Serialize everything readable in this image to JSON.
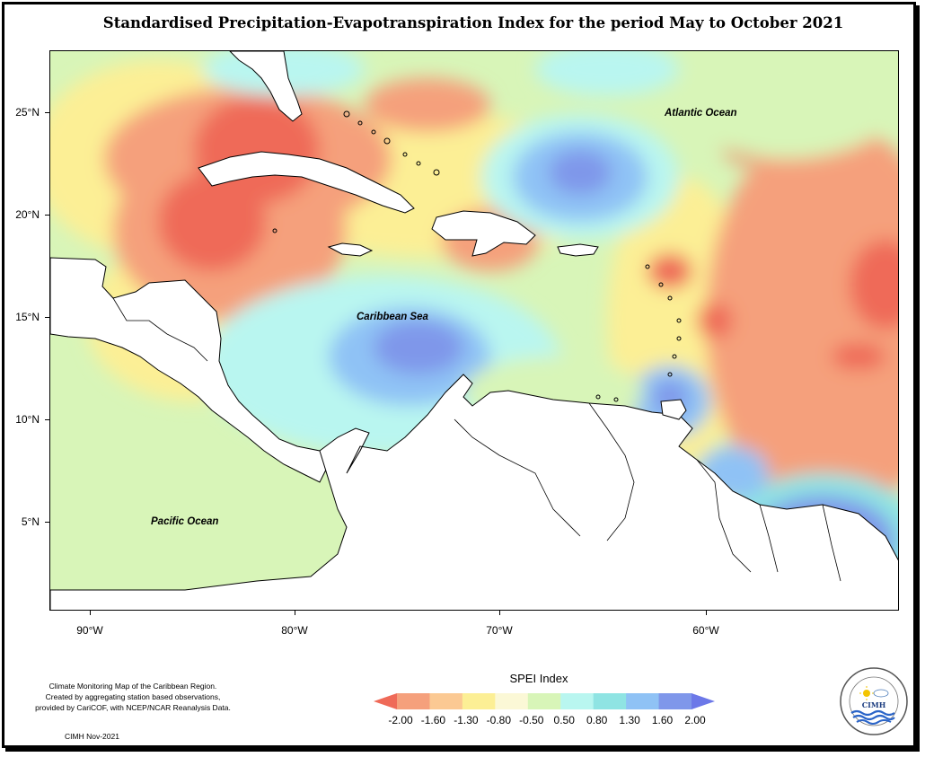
{
  "title": "Standardised Precipitation-Evapotranspiration Index for the period May to October 2021",
  "map": {
    "y_ticks": [
      "25°N",
      "20°N",
      "15°N",
      "10°N",
      "5°N"
    ],
    "x_ticks": [
      "90°W",
      "80°W",
      "70°W",
      "60°W"
    ],
    "labels": {
      "atlantic": "Atlantic Ocean",
      "caribbean": "Caribbean Sea",
      "pacific": "Pacific Ocean"
    }
  },
  "legend": {
    "title": "SPEI Index",
    "values": [
      "-2.00",
      "-1.60",
      "-1.30",
      "-0.80",
      "-0.50",
      "0.50",
      "0.80",
      "1.30",
      "1.60",
      "2.00"
    ],
    "colors": [
      "#ef6a58",
      "#f5a07c",
      "#fbc993",
      "#fcef95",
      "#fbf8d6",
      "#d8f5b8",
      "#b9f6f0",
      "#8fe4e3",
      "#8fc2f5",
      "#7f97ea",
      "#6c78e8"
    ]
  },
  "credits": {
    "line1": "Climate Monitoring Map of the Caribbean Region.",
    "line2": "Created by aggregating station based observations,",
    "line3": "provided by CariCOF, with NCEP/NCAR Reanalysis Data.",
    "date": "CIMH Nov-2021"
  },
  "logo": {
    "text": "CIMH",
    "ring_text": "Caribbean Institute for Meteorology and Hydrology"
  }
}
